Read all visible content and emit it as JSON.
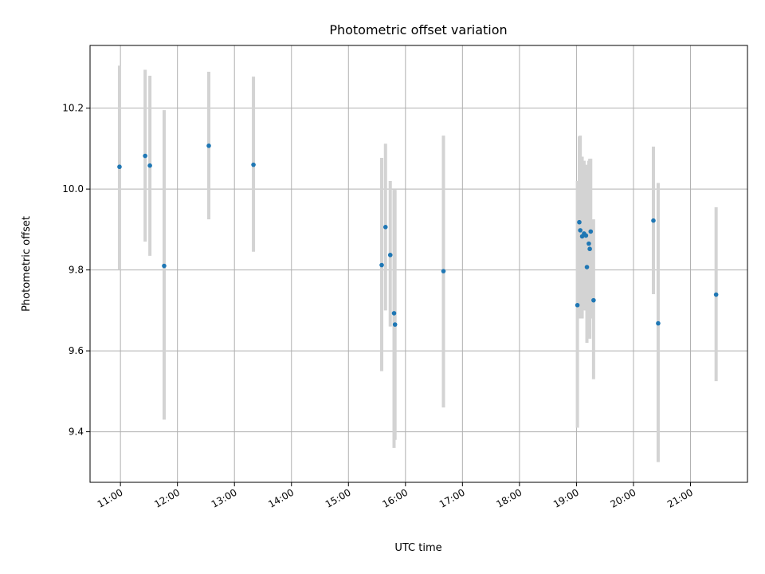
{
  "chart_data": {
    "type": "scatter",
    "title": "Photometric offset variation",
    "xlabel": "UTC time",
    "ylabel": "Photometric offset",
    "xlim": [
      "10:28",
      "22:00"
    ],
    "ylim": [
      9.275,
      10.355
    ],
    "x_ticks": [
      "11:00",
      "12:00",
      "13:00",
      "14:00",
      "15:00",
      "16:00",
      "17:00",
      "18:00",
      "19:00",
      "20:00",
      "21:00"
    ],
    "y_ticks": [
      9.4,
      9.6,
      9.8,
      10.0,
      10.2
    ],
    "y_tick_labels": [
      "9.4",
      "9.6",
      "9.8",
      "10.0",
      "10.2"
    ],
    "grid": true,
    "point_color": "#1f77b4",
    "errorbar_color": "#d3d3d3",
    "points": [
      {
        "time": "10:59",
        "value": 10.055,
        "err_low": 9.8,
        "err_high": 10.305
      },
      {
        "time": "11:26",
        "value": 10.082,
        "err_low": 9.87,
        "err_high": 10.295
      },
      {
        "time": "11:31",
        "value": 10.058,
        "err_low": 9.835,
        "err_high": 10.28
      },
      {
        "time": "11:46",
        "value": 9.81,
        "err_low": 9.43,
        "err_high": 10.195
      },
      {
        "time": "12:33",
        "value": 10.107,
        "err_low": 9.925,
        "err_high": 10.29
      },
      {
        "time": "13:20",
        "value": 10.06,
        "err_low": 9.845,
        "err_high": 10.278
      },
      {
        "time": "15:35",
        "value": 9.812,
        "err_low": 9.55,
        "err_high": 10.077
      },
      {
        "time": "15:39",
        "value": 9.906,
        "err_low": 9.7,
        "err_high": 10.112
      },
      {
        "time": "15:44",
        "value": 9.837,
        "err_low": 9.66,
        "err_high": 10.02
      },
      {
        "time": "15:48",
        "value": 9.693,
        "err_low": 9.36,
        "err_high": 9.998
      },
      {
        "time": "15:49",
        "value": 9.665,
        "err_low": 9.38,
        "err_high": 9.998
      },
      {
        "time": "16:40",
        "value": 9.797,
        "err_low": 9.46,
        "err_high": 10.132
      },
      {
        "time": "19:01",
        "value": 9.713,
        "err_low": 9.41,
        "err_high": 10.02
      },
      {
        "time": "19:03",
        "value": 9.918,
        "err_low": 9.7,
        "err_high": 10.13
      },
      {
        "time": "19:04",
        "value": 9.898,
        "err_low": 9.68,
        "err_high": 10.132
      },
      {
        "time": "19:06",
        "value": 9.883,
        "err_low": 9.68,
        "err_high": 10.08
      },
      {
        "time": "19:08",
        "value": 9.89,
        "err_low": 9.7,
        "err_high": 10.07
      },
      {
        "time": "19:10",
        "value": 9.885,
        "err_low": 9.7,
        "err_high": 10.06
      },
      {
        "time": "19:11",
        "value": 9.807,
        "err_low": 9.62,
        "err_high": 10.02
      },
      {
        "time": "19:13",
        "value": 9.865,
        "err_low": 9.66,
        "err_high": 10.07
      },
      {
        "time": "19:14",
        "value": 9.852,
        "err_low": 9.63,
        "err_high": 10.075
      },
      {
        "time": "19:15",
        "value": 9.895,
        "err_low": 9.68,
        "err_high": 10.075
      },
      {
        "time": "19:18",
        "value": 9.725,
        "err_low": 9.53,
        "err_high": 9.925
      },
      {
        "time": "20:21",
        "value": 9.922,
        "err_low": 9.74,
        "err_high": 10.105
      },
      {
        "time": "20:26",
        "value": 9.668,
        "err_low": 9.325,
        "err_high": 10.015
      },
      {
        "time": "21:27",
        "value": 9.739,
        "err_low": 9.525,
        "err_high": 9.955
      }
    ]
  }
}
